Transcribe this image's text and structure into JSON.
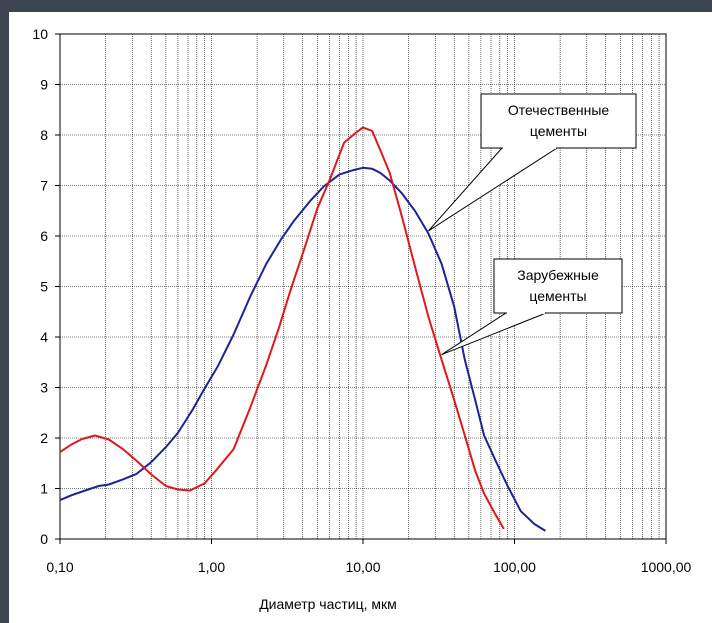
{
  "chart_data": {
    "type": "line",
    "title": "",
    "xlabel": "Диаметр частиц, мкм",
    "ylabel": "",
    "x_scale": "log",
    "xlim": [
      0.1,
      1000
    ],
    "ylim": [
      0,
      10
    ],
    "grid": true,
    "x_ticks": [
      0.1,
      1,
      10,
      100,
      1000
    ],
    "x_tick_labels": [
      "0,10",
      "1,00",
      "10,00",
      "100,00",
      "1000,00"
    ],
    "y_ticks": [
      0,
      1,
      2,
      3,
      4,
      5,
      6,
      7,
      8,
      9,
      10
    ],
    "y_tick_labels": [
      "0",
      "1",
      "2",
      "3",
      "4",
      "5",
      "6",
      "7",
      "8",
      "9",
      "10"
    ],
    "series": [
      {
        "color": "#1f2396",
        "x": [
          0.1,
          0.12,
          0.15,
          0.18,
          0.21,
          0.26,
          0.32,
          0.4,
          0.5,
          0.6,
          0.75,
          0.9,
          1.1,
          1.4,
          1.8,
          2.3,
          2.9,
          3.5,
          4.5,
          5.5,
          7,
          8.5,
          10,
          11.5,
          13,
          15,
          18,
          22,
          27,
          33,
          40,
          47,
          55,
          63,
          75,
          90,
          110,
          135,
          160
        ],
        "y": [
          0.77,
          0.87,
          0.97,
          1.05,
          1.08,
          1.18,
          1.29,
          1.52,
          1.82,
          2.1,
          2.56,
          2.98,
          3.42,
          4.05,
          4.8,
          5.45,
          5.95,
          6.3,
          6.7,
          6.98,
          7.22,
          7.3,
          7.35,
          7.33,
          7.25,
          7.1,
          6.85,
          6.5,
          6.05,
          5.45,
          4.6,
          3.55,
          2.75,
          2.05,
          1.55,
          1.05,
          0.55,
          0.3,
          0.16
        ]
      },
      {
        "color": "#e0181c",
        "x": [
          0.1,
          0.12,
          0.14,
          0.17,
          0.21,
          0.26,
          0.32,
          0.4,
          0.5,
          0.6,
          0.72,
          0.9,
          1.1,
          1.4,
          1.8,
          2.3,
          2.8,
          3.3,
          4,
          5,
          6,
          7.5,
          9,
          10,
          11.5,
          13,
          15,
          18,
          22,
          27,
          33,
          40,
          47,
          55,
          63,
          75,
          85
        ],
        "y": [
          1.72,
          1.88,
          1.98,
          2.05,
          1.97,
          1.78,
          1.55,
          1.28,
          1.05,
          0.98,
          0.96,
          1.1,
          1.4,
          1.78,
          2.6,
          3.45,
          4.2,
          4.9,
          5.65,
          6.55,
          7.1,
          7.85,
          8.05,
          8.15,
          8.08,
          7.7,
          7.25,
          6.4,
          5.4,
          4.4,
          3.55,
          2.75,
          2.05,
          1.35,
          0.9,
          0.48,
          0.2
        ]
      }
    ],
    "annotations": [
      {
        "lines": [
          "Отечественные",
          "цементы"
        ],
        "point_x": 27,
        "point_y": 6.1
      },
      {
        "lines": [
          "Зарубежные",
          "цементы"
        ],
        "point_x": 33,
        "point_y": 3.65
      }
    ]
  }
}
